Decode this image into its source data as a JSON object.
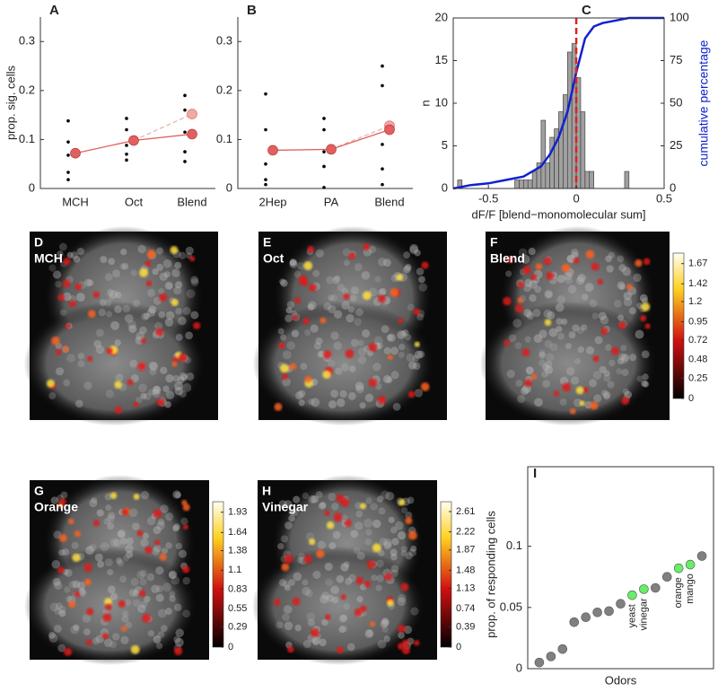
{
  "chart_data": [
    {
      "type": "strip",
      "label": "A",
      "ylabel": "prop. sig. cells",
      "categories": [
        "MCH",
        "Oct",
        "Blend"
      ],
      "ylim": [
        0,
        0.35
      ],
      "yticks": [
        0,
        0.1,
        0.2,
        0.3
      ],
      "points": [
        [
          0.138,
          0.095,
          0.068,
          0.033,
          0.018
        ],
        [
          0.143,
          0.12,
          0.088,
          0.07,
          0.058
        ],
        [
          0.19,
          0.16,
          0.115,
          0.075,
          0.055
        ]
      ],
      "point_color": "#000000",
      "observed": [
        0.072,
        0.098,
        0.111
      ],
      "observed_color": "#e06060",
      "predicted": [
        null,
        null,
        0.152
      ],
      "predicted_color": "#f0a8a8"
    },
    {
      "type": "strip",
      "label": "B",
      "ylabel": null,
      "categories": [
        "2Hep",
        "PA",
        "Blend"
      ],
      "ylim": [
        0,
        0.35
      ],
      "yticks": [
        0,
        0.1,
        0.2,
        0.3
      ],
      "points": [
        [
          0.193,
          0.12,
          0.05,
          0.018,
          0.008
        ],
        [
          0.143,
          0.12,
          0.075,
          0.045,
          0.002
        ],
        [
          0.25,
          0.21,
          0.09,
          0.04,
          0.008
        ]
      ],
      "point_color": "#000000",
      "observed": [
        0.078,
        0.08,
        0.12
      ],
      "observed_color": "#e06060",
      "predicted": [
        null,
        null,
        0.128
      ],
      "predicted_color": "#f0a8a8"
    },
    {
      "type": "histogram",
      "label": "C",
      "xlabel": "dF/F [blend−monomolecular sum]",
      "ylabel": "n",
      "y2label": "cumulative percentage",
      "bins": [
        -0.675,
        -0.65,
        -0.625,
        -0.6,
        -0.575,
        -0.55,
        -0.525,
        -0.5,
        -0.475,
        -0.45,
        -0.425,
        -0.4,
        -0.375,
        -0.35,
        -0.325,
        -0.3,
        -0.275,
        -0.25,
        -0.225,
        -0.2,
        -0.175,
        -0.15,
        -0.125,
        -0.1,
        -0.075,
        -0.05,
        -0.025,
        0,
        0.025,
        0.05,
        0.075,
        0.1,
        0.125,
        0.15,
        0.175,
        0.2,
        0.225,
        0.25,
        0.275,
        0.3,
        0.325
      ],
      "counts": [
        1,
        0,
        0,
        0,
        0,
        0,
        0,
        0,
        0,
        0,
        0,
        0,
        0,
        1,
        1,
        1,
        1,
        2,
        3,
        8,
        3,
        6,
        7,
        9,
        11,
        16,
        17,
        13,
        9,
        2,
        2,
        0,
        0,
        0,
        0,
        0,
        0,
        0,
        2,
        0
      ],
      "bar_color": "#a0a0a0",
      "cumulative": {
        "x": [
          -0.7,
          -0.6,
          -0.5,
          -0.4,
          -0.3,
          -0.2,
          -0.15,
          -0.1,
          -0.05,
          0,
          0.05,
          0.1,
          0.15,
          0.2,
          0.3,
          0.4,
          0.5
        ],
        "values": [
          0,
          2,
          3,
          5,
          7,
          13,
          20,
          30,
          45,
          68,
          88,
          95,
          97,
          98,
          100,
          100,
          100
        ],
        "color": "#1020d0",
        "axis": "y2"
      },
      "vline": 0,
      "vline_color": "#e02020",
      "xlim": [
        -0.7,
        0.5
      ],
      "xticks": [
        -0.5,
        0,
        0.5
      ],
      "ylim": [
        0,
        20
      ],
      "yticks": [
        0,
        5,
        10,
        15,
        20
      ],
      "y2lim": [
        0,
        100
      ],
      "y2ticks": [
        0,
        25,
        50,
        75,
        100
      ]
    },
    {
      "type": "scatter",
      "label": "I",
      "xlabel": "Odors",
      "ylabel": "prop. of responding cells",
      "values": [
        0.005,
        0.01,
        0.016,
        0.038,
        0.042,
        0.046,
        0.047,
        0.053,
        0.06,
        0.065,
        0.066,
        0.075,
        0.082,
        0.085,
        0.092
      ],
      "colors": [
        "#808080",
        "#808080",
        "#808080",
        "#808080",
        "#808080",
        "#808080",
        "#808080",
        "#808080",
        "#66ee66",
        "#66ee66",
        "#808080",
        "#808080",
        "#66ee66",
        "#66ee66",
        "#808080"
      ],
      "point_labels": [
        null,
        null,
        null,
        null,
        null,
        null,
        null,
        null,
        "yeast",
        "vinegar",
        null,
        null,
        "orange",
        "mango",
        null
      ],
      "ylim": [
        0,
        0.165
      ],
      "yticks": [
        0,
        0.05,
        0.1
      ]
    }
  ],
  "images": [
    {
      "label": "D",
      "name": "MCH",
      "colorbar": null
    },
    {
      "label": "E",
      "name": "Oct",
      "colorbar": null
    },
    {
      "label": "F",
      "name": "Blend",
      "colorbar": {
        "lim": [
          0,
          1.8
        ],
        "ticks": [
          0,
          0.25,
          0.48,
          0.72,
          0.95,
          1.2,
          1.42,
          1.67
        ]
      }
    },
    {
      "label": "G",
      "name": "Orange",
      "colorbar": {
        "lim": [
          0,
          2.08
        ],
        "ticks": [
          0,
          0.29,
          0.55,
          0.83,
          1.1,
          1.38,
          1.64,
          1.93
        ]
      }
    },
    {
      "label": "H",
      "name": "Vinegar",
      "colorbar": {
        "lim": [
          0,
          2.8
        ],
        "ticks": [
          0,
          0.39,
          0.74,
          1.13,
          1.48,
          1.87,
          2.22,
          2.61
        ]
      }
    }
  ]
}
